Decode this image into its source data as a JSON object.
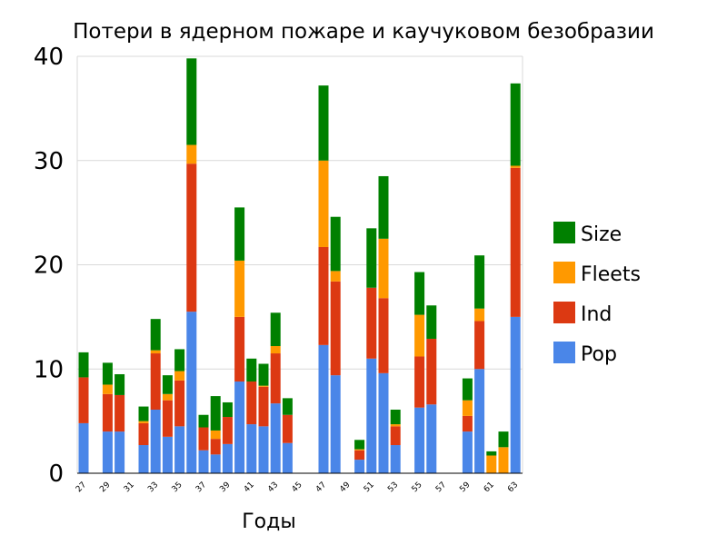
{
  "chart_data": {
    "type": "bar",
    "stacked": true,
    "title": "Потери в ядерном пожаре и каучуковом безобразии",
    "xlabel": "Годы",
    "ylabel": "",
    "ylim": [
      0,
      40
    ],
    "yticks": [
      "0",
      "10",
      "20",
      "30",
      "40"
    ],
    "grid": true,
    "legend_position": "right",
    "categories": [
      "27",
      "28",
      "29",
      "30",
      "31",
      "32",
      "33",
      "34",
      "35",
      "36",
      "37",
      "38",
      "39",
      "40",
      "41",
      "42",
      "43",
      "44",
      "45",
      "46",
      "47",
      "48",
      "49",
      "50",
      "51",
      "52",
      "53",
      "54",
      "55",
      "56",
      "57",
      "58",
      "59",
      "60",
      "61",
      "62",
      "63"
    ],
    "tick_labels": [
      "27",
      "",
      "29",
      "",
      "31",
      "",
      "33",
      "",
      "35",
      "",
      "37",
      "",
      "39",
      "",
      "41",
      "",
      "43",
      "",
      "45",
      "",
      "47",
      "",
      "49",
      "",
      "51",
      "",
      "53",
      "",
      "55",
      "",
      "57",
      "",
      "59",
      "",
      "61",
      "",
      "63"
    ],
    "series": [
      {
        "name": "Pop",
        "color": "#4a86e8",
        "values": [
          4.8,
          0,
          4.0,
          4.0,
          0,
          2.7,
          6.1,
          3.5,
          4.5,
          15.5,
          2.2,
          1.8,
          2.8,
          8.8,
          4.7,
          4.5,
          6.7,
          2.9,
          0,
          0,
          12.3,
          9.4,
          0,
          1.3,
          11.0,
          9.6,
          2.7,
          0,
          6.3,
          6.6,
          0,
          0,
          4.0,
          10.0,
          0,
          0,
          15.0
        ]
      },
      {
        "name": "Ind",
        "color": "#dc3912",
        "values": [
          4.4,
          0,
          3.6,
          3.5,
          0,
          2.1,
          5.4,
          3.5,
          4.4,
          14.2,
          2.2,
          1.5,
          2.6,
          6.2,
          4.1,
          3.8,
          4.8,
          2.7,
          0,
          0,
          9.4,
          9.0,
          0,
          0.9,
          6.8,
          7.2,
          1.8,
          0,
          4.9,
          6.3,
          0,
          0,
          1.5,
          4.6,
          0,
          0,
          14.3
        ]
      },
      {
        "name": "Fleets",
        "color": "#ff9900",
        "values": [
          0,
          0,
          0.9,
          0,
          0,
          0.2,
          0.3,
          0.6,
          0.9,
          1.8,
          0,
          0.8,
          0,
          5.4,
          0,
          0.1,
          0.7,
          0,
          0,
          0,
          8.3,
          1.0,
          0,
          0.1,
          0,
          5.7,
          0.2,
          0,
          4.0,
          0,
          0,
          0,
          1.5,
          1.2,
          1.7,
          2.5,
          0.2
        ]
      },
      {
        "name": "Size",
        "color": "#008000",
        "values": [
          2.4,
          0,
          2.1,
          2.0,
          0,
          1.4,
          3.0,
          1.8,
          2.1,
          8.3,
          1.2,
          3.3,
          1.4,
          5.1,
          2.2,
          2.1,
          3.2,
          1.6,
          0,
          0,
          7.2,
          5.2,
          0,
          0.9,
          5.7,
          6.0,
          1.4,
          0,
          4.1,
          3.2,
          0,
          0,
          2.1,
          5.1,
          0.4,
          1.5,
          7.9
        ]
      }
    ]
  }
}
